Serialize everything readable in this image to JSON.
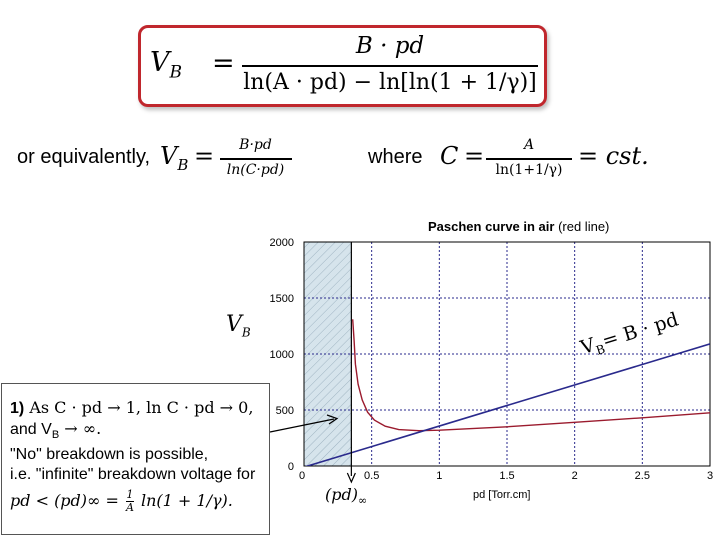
{
  "formula": {
    "lhs": "V",
    "lhs_sub": "B",
    "equals": "=",
    "numerator": "B · pd",
    "denominator": "ln(A · pd)  − ln[ln(1 + 1/γ)]"
  },
  "equivalent": {
    "prefix": "or equivalently,",
    "lhs": "V",
    "lhs_sub": "B",
    "equals": "=",
    "numerator": "B·pd",
    "denominator": "ln(C·pd)",
    "where_label": "where",
    "c_lhs": "C",
    "c_equals": "=",
    "c_numerator": "A",
    "c_denominator": "ln(1+1/γ)",
    "c_rhs": "= cst."
  },
  "chart": {
    "title_bold": "Paschen curve in air",
    "title_rest": "(red line)",
    "y_label": "V",
    "y_label_sub": "B",
    "x_label": "pd [Torr.cm]",
    "pd_inf_label": "(pd)",
    "pd_inf_sub": "∞",
    "line_label": "V",
    "line_label_sub": "B",
    "line_label_rest": "= B · pd",
    "x_ticks": [
      "0",
      "0.5",
      "1",
      "1.5",
      "2",
      "2.5",
      "3"
    ],
    "y_ticks": [
      "0",
      "500",
      "1000",
      "1500",
      "2000"
    ]
  },
  "chart_data": {
    "type": "line",
    "title": "Paschen curve in air (red line)",
    "xlabel": "pd [Torr.cm]",
    "ylabel": "V_B",
    "xlim": [
      0,
      3
    ],
    "ylim": [
      0,
      2000
    ],
    "x_ticks": [
      0,
      0.5,
      1,
      1.5,
      2,
      2.5,
      3
    ],
    "y_ticks": [
      0,
      500,
      1000,
      1500,
      2000
    ],
    "grid": true,
    "series": [
      {
        "name": "Paschen curve in air",
        "color": "#9b1b2e",
        "x": [
          0.36,
          0.37,
          0.38,
          0.4,
          0.43,
          0.47,
          0.52,
          0.6,
          0.7,
          0.85,
          1.0,
          1.5,
          2.0,
          2.5,
          3.0
        ],
        "y": [
          1310,
          1120,
          910,
          730,
          590,
          480,
          410,
          355,
          325,
          315,
          320,
          350,
          390,
          430,
          475
        ]
      },
      {
        "name": "V_B = B · pd",
        "color": "#2a2a8c",
        "x": [
          0,
          3
        ],
        "y": [
          -10,
          1090
        ]
      }
    ],
    "annotations": [
      "(pd)∞ ≈ 0.35",
      "V_B = B · pd"
    ]
  },
  "callout": {
    "line1_bold": "1)",
    "line1_text": " As C · pd → 1, ln C · pd → 0,",
    "line2": "and V",
    "line2_sub": "B",
    "line2_rest": " → ∞.",
    "line3": "\"No\" breakdown is possible,",
    "line4": "i.e. \"infinite\" breakdown voltage for",
    "line5": "pd < (pd)∞ = ",
    "line5_num": "1",
    "line5_den": "A",
    "line5_rest": " ln(1 + 1/γ)."
  }
}
